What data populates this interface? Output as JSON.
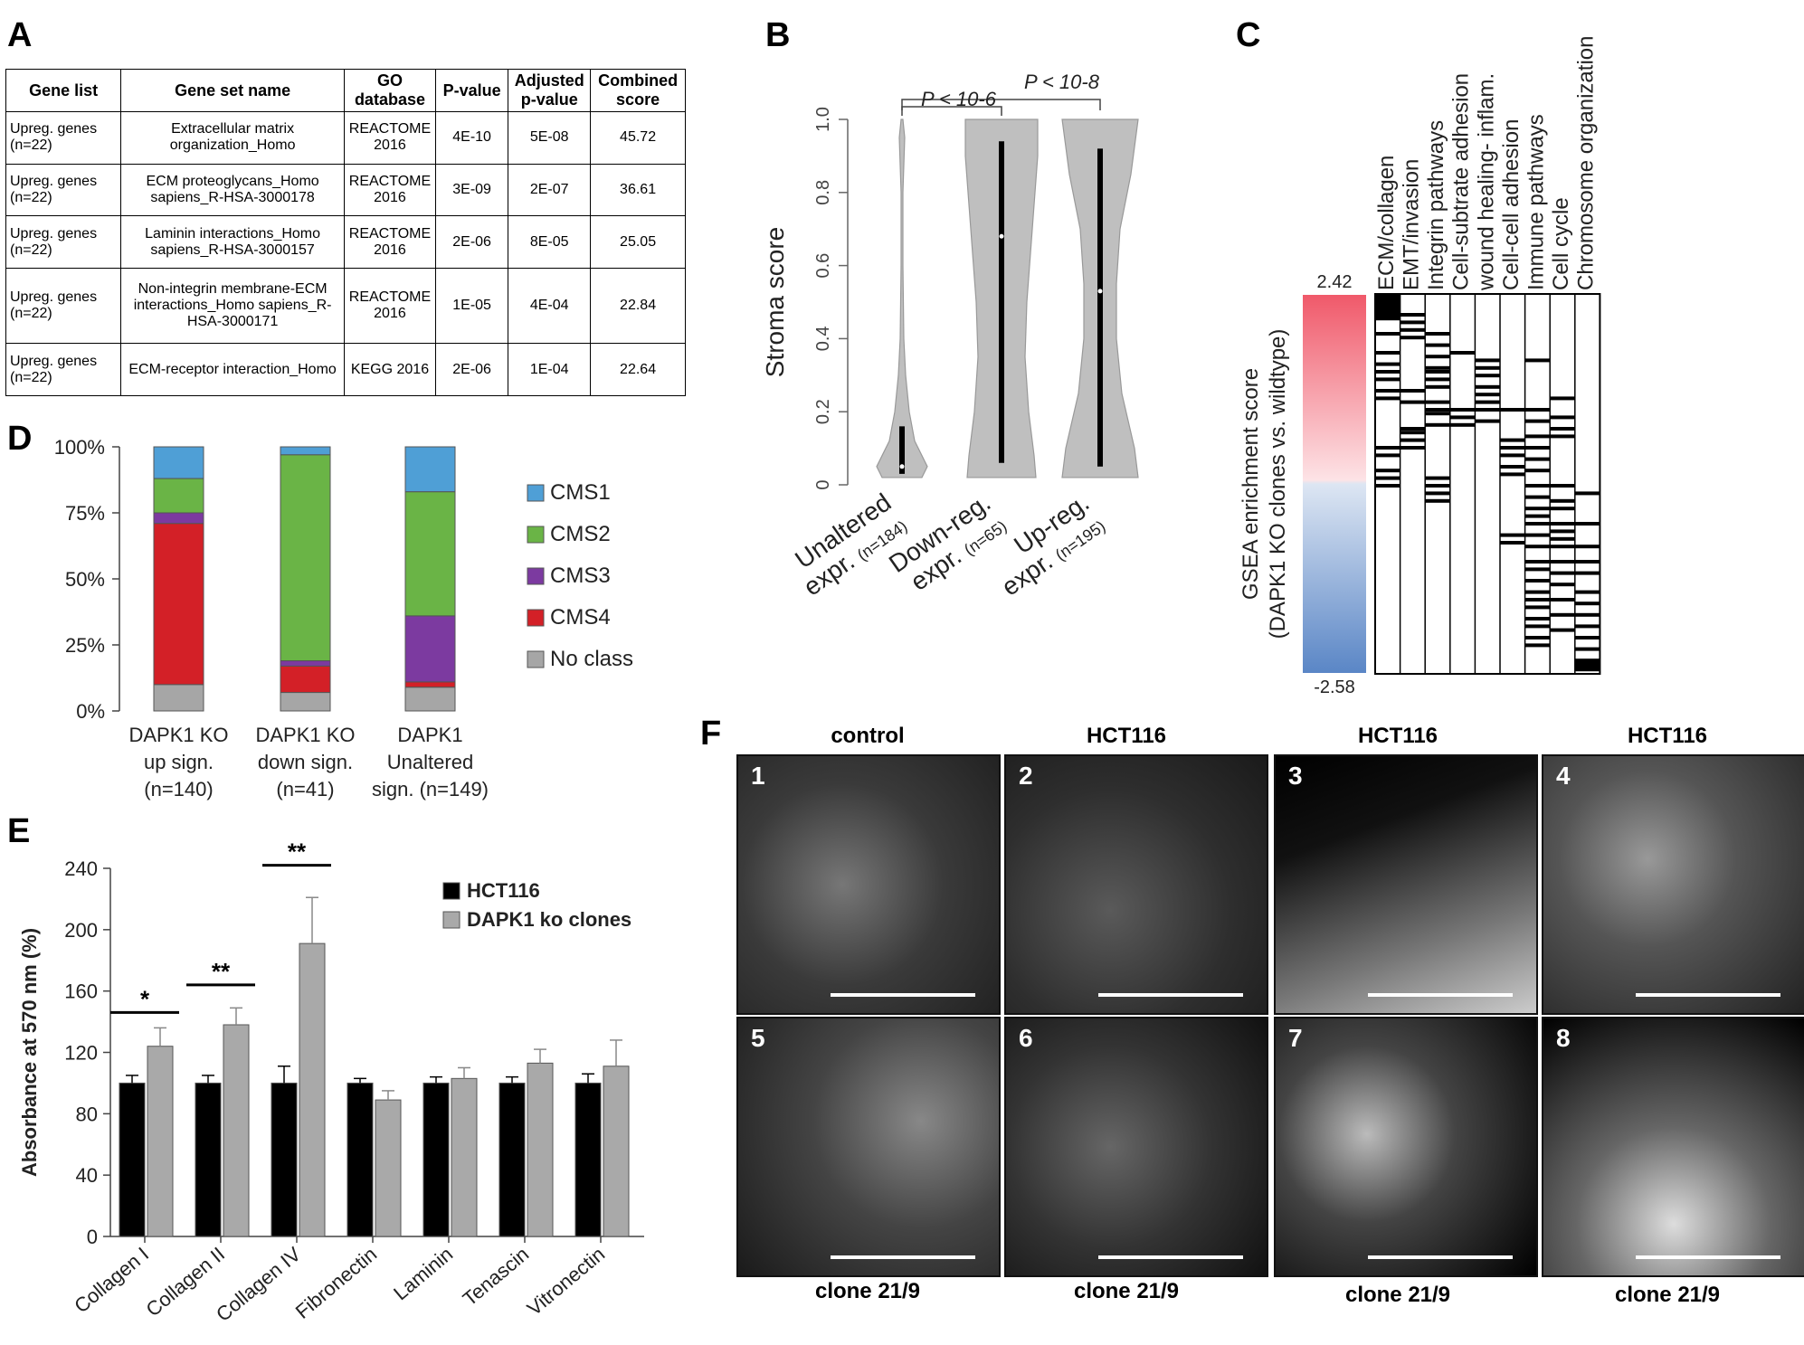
{
  "panels": {
    "a": "A",
    "b": "B",
    "c": "C",
    "d": "D",
    "e": "E",
    "f": "F"
  },
  "tableA": {
    "headers": [
      "Gene list",
      "Gene set name",
      "GO database",
      "P-value",
      "Adjusted p-value",
      "Combined score"
    ],
    "rows": [
      [
        "Upreg. genes (n=22)",
        "Extracellular matrix organization_Homo",
        "REACTOME 2016",
        "4E-10",
        "5E-08",
        "45.72"
      ],
      [
        "Upreg. genes (n=22)",
        "ECM proteoglycans_Homo sapiens_R-HSA-3000178",
        "REACTOME 2016",
        "3E-09",
        "2E-07",
        "36.61"
      ],
      [
        "Upreg. genes (n=22)",
        "Laminin interactions_Homo sapiens_R-HSA-3000157",
        "REACTOME 2016",
        "2E-06",
        "8E-05",
        "25.05"
      ],
      [
        "Upreg. genes (n=22)",
        "Non-integrin membrane-ECM interactions_Homo sapiens_R-HSA-3000171",
        "REACTOME 2016",
        "1E-05",
        "4E-04",
        "22.84"
      ],
      [
        "Upreg. genes (n=22)",
        "ECM-receptor interaction_Homo",
        "KEGG 2016",
        "2E-06",
        "1E-04",
        "22.64"
      ]
    ]
  },
  "panelB": {
    "ylabel": "Stroma score",
    "yticks": [
      "0",
      "0.2",
      "0.4",
      "0.6",
      "0.8",
      "1.0"
    ],
    "groups": [
      "Unaltered expr. (n=184)",
      "Down-reg. expr. (n=65)",
      "Up-reg. expr. (n=195)"
    ],
    "group_line1": [
      "Unaltered",
      "Down-reg.",
      "Up-reg."
    ],
    "group_line2": [
      "expr.",
      "expr.",
      "expr."
    ],
    "group_n": [
      "(n=184)",
      "(n=65)",
      "(n=195)"
    ],
    "sig1": "P < 10-6",
    "sig2": "P < 10-8"
  },
  "panelC": {
    "ylabel1": "GSEA enrichment score",
    "ylabel2": "(DAPK1 KO clones vs. wildtype)",
    "max": "2.42",
    "min": "-2.58",
    "columns": [
      "ECM/collagen",
      "EMT/invasion",
      "Integrin pathways",
      "Cell-subtrate adhesion",
      "wound healing- inflam.",
      "Cell-cell adhesion",
      "Immune pathways",
      "Cell cycle",
      "Chromosome organization"
    ]
  },
  "panelD": {
    "yticks": [
      "0%",
      "25%",
      "50%",
      "75%",
      "100%"
    ],
    "legend": [
      "CMS1",
      "CMS2",
      "CMS3",
      "CMS4",
      "No class"
    ],
    "colors": {
      "CMS1": "#4f9fd6",
      "CMS2": "#6ab446",
      "CMS3": "#7c3aa0",
      "CMS4": "#d32027",
      "No class": "#a6a6a6"
    },
    "xlabels": [
      [
        "DAPK1 KO",
        "up sign.",
        "(n=140)"
      ],
      [
        "DAPK1 KO",
        "down sign.",
        "(n=41)"
      ],
      [
        "DAPK1",
        "Unaltered",
        "sign. (n=149)"
      ]
    ]
  },
  "panelE": {
    "ylabel": "Absorbance at 570 nm (%)",
    "yticks": [
      "0",
      "40",
      "80",
      "120",
      "160",
      "200",
      "240"
    ],
    "legend": [
      "HCT116",
      "DAPK1 ko clones"
    ],
    "stars": [
      "*",
      "**",
      "**"
    ]
  },
  "panelF": {
    "top_headers": [
      "control",
      "HCT116",
      "HCT116",
      "HCT116"
    ],
    "bottom_labels": [
      "clone 21/9",
      "clone 21/9",
      "clone 21/9",
      "clone 21/9"
    ],
    "numbers": [
      "1",
      "2",
      "3",
      "4",
      "5",
      "6",
      "7",
      "8"
    ]
  },
  "chart_data": [
    {
      "type": "violin",
      "panel": "B",
      "ylabel": "Stroma score",
      "ylim": [
        0,
        1.0
      ],
      "categories": [
        "Unaltered expr. (n=184)",
        "Down-reg. expr. (n=65)",
        "Up-reg. expr. (n=195)"
      ],
      "medians": [
        0.05,
        0.68,
        0.53
      ],
      "q1": [
        0.03,
        0.06,
        0.05
      ],
      "q3": [
        0.16,
        0.94,
        0.92
      ]
    },
    {
      "type": "bar",
      "panel": "D",
      "stacked": true,
      "categories": [
        "DAPK1 KO up sign. (n=140)",
        "DAPK1 KO down sign. (n=41)",
        "DAPK1 Unaltered sign. (n=149)"
      ],
      "series": [
        {
          "name": "No class",
          "values": [
            10,
            7,
            9
          ]
        },
        {
          "name": "CMS4",
          "values": [
            61,
            10,
            2
          ]
        },
        {
          "name": "CMS3",
          "values": [
            4,
            2,
            25
          ]
        },
        {
          "name": "CMS2",
          "values": [
            13,
            78,
            47
          ]
        },
        {
          "name": "CMS1",
          "values": [
            12,
            3,
            17
          ]
        }
      ],
      "ylim": [
        0,
        100
      ]
    },
    {
      "type": "bar",
      "panel": "E",
      "categories": [
        "Collagen I",
        "Collagen II",
        "Collagen IV",
        "Fibronectin",
        "Laminin",
        "Tenascin",
        "Vitronectin"
      ],
      "series": [
        {
          "name": "HCT116",
          "values": [
            100,
            100,
            100,
            100,
            100,
            100,
            100
          ],
          "errors": [
            5,
            5,
            11,
            3,
            4,
            4,
            6
          ]
        },
        {
          "name": "DAPK1 ko clones",
          "values": [
            124,
            138,
            191,
            89,
            103,
            113,
            111
          ],
          "errors": [
            12,
            11,
            30,
            6,
            7,
            9,
            17
          ]
        }
      ],
      "ylabel": "Absorbance at 570 nm (%)",
      "ylim": [
        0,
        240
      ]
    }
  ]
}
